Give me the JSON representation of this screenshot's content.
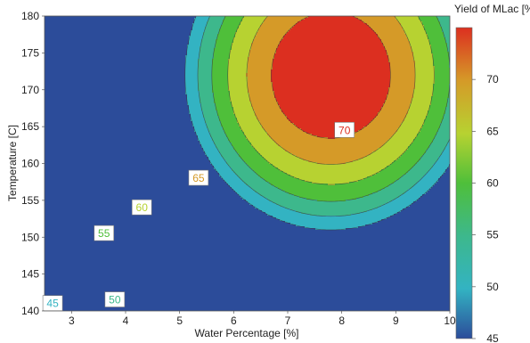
{
  "chart_data": {
    "type": "contour",
    "xlabel": "Water Percentage [%]",
    "ylabel": "Temperature [C]",
    "colorbar_label": "Yield of MLac [%]",
    "xlim": [
      2.5,
      10
    ],
    "ylim": [
      140,
      180
    ],
    "x_ticks": [
      "3",
      "4",
      "5",
      "6",
      "7",
      "8",
      "9",
      "10"
    ],
    "y_ticks": [
      "140",
      "145",
      "150",
      "155",
      "160",
      "165",
      "170",
      "175",
      "180"
    ],
    "colorbar_range": [
      45,
      75
    ],
    "colorbar_ticks": [
      "45",
      "50",
      "55",
      "60",
      "65",
      "70"
    ],
    "contour_levels": [
      45,
      50,
      55,
      60,
      65,
      70
    ],
    "contour_labels": [
      {
        "text": "45",
        "x": 2.65,
        "y": 141.0
      },
      {
        "text": "50",
        "x": 3.8,
        "y": 141.5
      },
      {
        "text": "55",
        "x": 3.6,
        "y": 150.5
      },
      {
        "text": "60",
        "x": 4.3,
        "y": 154.0
      },
      {
        "text": "65",
        "x": 5.35,
        "y": 158.0
      },
      {
        "text": "70",
        "x": 8.05,
        "y": 164.5
      }
    ],
    "surface": {
      "peak_value": 75,
      "peak_x": 7.8,
      "peak_y": 172,
      "x_scale": 2.7,
      "y_scale": 21
    },
    "colors": [
      "#2c4c9a",
      "#33b3c2",
      "#3db88c",
      "#4fbf3a",
      "#b7d231",
      "#d59a28",
      "#dc2f20"
    ]
  }
}
